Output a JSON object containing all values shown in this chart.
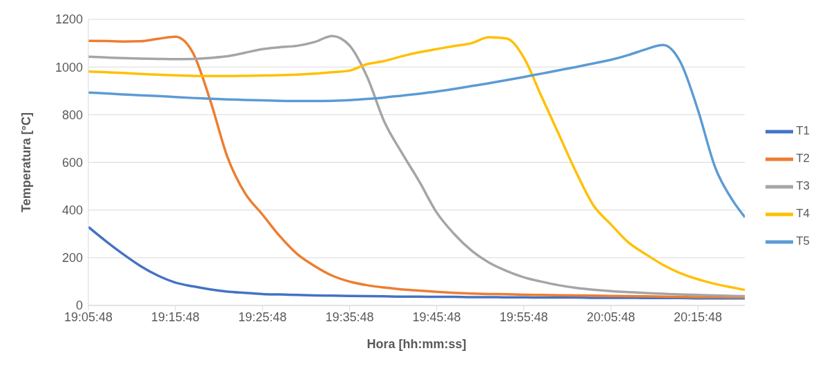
{
  "chart_data": {
    "type": "line",
    "xlabel": "Hora [hh:mm:ss]",
    "ylabel": "Temperatura [°C]",
    "x": [
      19.0967,
      19.13,
      19.1633,
      19.1967,
      19.23,
      19.2633,
      19.2967,
      19.33,
      19.3633,
      19.3967,
      19.43,
      19.4633,
      19.4967,
      19.53,
      19.5633,
      19.5967,
      19.63,
      19.6633,
      19.6967,
      19.73,
      19.7633,
      19.7967,
      19.83,
      19.8633,
      19.8967,
      19.93,
      19.9633,
      19.9967,
      20.03,
      20.0633,
      20.0967,
      20.13,
      20.1633,
      20.1967,
      20.23,
      20.2633,
      20.2967,
      20.33,
      20.3533
    ],
    "series": [
      {
        "name": "T1",
        "color": "#4472c4",
        "values": [
          329,
          270,
          215,
          165,
          125,
          96,
          80,
          67,
          58,
          53,
          48,
          46,
          44,
          42,
          41,
          40,
          39,
          38,
          37,
          37,
          36,
          36,
          35,
          35,
          34,
          34,
          33,
          33,
          33,
          32,
          32,
          32,
          31,
          31,
          31,
          30,
          30,
          30,
          30
        ]
      },
      {
        "name": "T2",
        "color": "#ed7d31",
        "values": [
          1110,
          1109,
          1107,
          1108,
          1118,
          1127,
          1060,
          860,
          620,
          470,
          381,
          290,
          215,
          165,
          125,
          100,
          85,
          75,
          67,
          62,
          57,
          53,
          50,
          48,
          47,
          45,
          44,
          43,
          42,
          41,
          40,
          39,
          38,
          37,
          36,
          35,
          35,
          34,
          34
        ]
      },
      {
        "name": "T3",
        "color": "#a5a5a5",
        "values": [
          1043,
          1040,
          1037,
          1035,
          1034,
          1033,
          1034,
          1038,
          1045,
          1060,
          1075,
          1083,
          1089,
          1105,
          1130,
          1090,
          960,
          770,
          640,
          520,
          390,
          300,
          230,
          180,
          145,
          118,
          100,
          85,
          74,
          66,
          60,
          56,
          52,
          49,
          46,
          44,
          42,
          40,
          39
        ]
      },
      {
        "name": "T4",
        "color": "#ffc000",
        "values": [
          981,
          978,
          975,
          971,
          968,
          965,
          963,
          962,
          962,
          963,
          964,
          966,
          968,
          972,
          978,
          985,
          1012,
          1025,
          1045,
          1062,
          1075,
          1088,
          1100,
          1125,
          1120,
          1040,
          880,
          720,
          560,
          420,
          340,
          265,
          215,
          170,
          135,
          110,
          90,
          75,
          65
        ]
      },
      {
        "name": "T5",
        "color": "#5b9bd5",
        "values": [
          893,
          889,
          885,
          881,
          878,
          874,
          870,
          867,
          864,
          862,
          860,
          858,
          857,
          857,
          858,
          861,
          866,
          872,
          880,
          888,
          897,
          908,
          920,
          932,
          945,
          958,
          972,
          986,
          1000,
          1015,
          1030,
          1050,
          1074,
          1092,
          1020,
          820,
          577,
          440,
          370
        ]
      }
    ],
    "xlim": [
      19.0967,
      20.3533
    ],
    "xticks": [
      {
        "value": 19.0967,
        "label": "19:05:48"
      },
      {
        "value": 19.2633,
        "label": "19:15:48"
      },
      {
        "value": 19.43,
        "label": "19:25:48"
      },
      {
        "value": 19.5967,
        "label": "19:35:48"
      },
      {
        "value": 19.7633,
        "label": "19:45:48"
      },
      {
        "value": 19.93,
        "label": "19:55:48"
      },
      {
        "value": 20.0967,
        "label": "20:05:48"
      },
      {
        "value": 20.2633,
        "label": "20:15:48"
      }
    ],
    "ylim": [
      0,
      1200
    ],
    "yticks": [
      0,
      200,
      400,
      600,
      800,
      1000,
      1200
    ],
    "grid": "y",
    "legend": "right",
    "marker": "none",
    "line_style": "solid"
  }
}
